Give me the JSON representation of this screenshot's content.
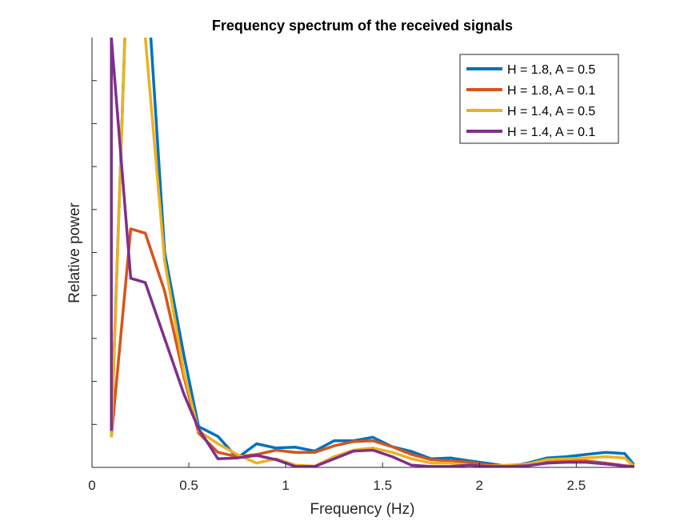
{
  "chart_data": {
    "type": "line",
    "title": "Frequency spectrum of the received signals",
    "xlabel": "Frequency (Hz)",
    "ylabel": "Relative power",
    "xlim": [
      0,
      2.8
    ],
    "ylim": [
      0,
      10
    ],
    "x_ticks": [
      0,
      0.5,
      1,
      1.5,
      2,
      2.5
    ],
    "x_tick_labels": [
      "0",
      "0.5",
      "1",
      "1.5",
      "2",
      "2.5"
    ],
    "y_ticks": [
      1,
      2,
      3,
      4,
      5,
      6,
      7,
      8,
      9
    ],
    "y_tick_labels": [],
    "grid": false,
    "legend_position": "top-right",
    "x": [
      0.1,
      0.2,
      0.275,
      0.375,
      0.475,
      0.55,
      0.65,
      0.75,
      0.85,
      0.95,
      1.05,
      1.15,
      1.25,
      1.35,
      1.45,
      1.55,
      1.65,
      1.75,
      1.85,
      1.95,
      2.05,
      2.15,
      2.25,
      2.35,
      2.45,
      2.55,
      2.65,
      2.75,
      2.8
    ],
    "series": [
      {
        "name": "H = 1.8, A = 0.5",
        "color": "#0072BD",
        "values": [
          0.8,
          14.0,
          12.0,
          5.0,
          2.6,
          0.95,
          0.72,
          0.22,
          0.55,
          0.45,
          0.47,
          0.38,
          0.62,
          0.62,
          0.7,
          0.48,
          0.37,
          0.2,
          0.22,
          0.15,
          0.09,
          0.02,
          0.1,
          0.22,
          0.25,
          0.3,
          0.35,
          0.32,
          0.05
        ]
      },
      {
        "name": "H = 1.8, A = 0.1",
        "color": "#D95319",
        "values": [
          0.7,
          5.55,
          5.45,
          4.1,
          2.1,
          0.8,
          0.35,
          0.25,
          0.3,
          0.4,
          0.35,
          0.35,
          0.5,
          0.6,
          0.62,
          0.48,
          0.3,
          0.18,
          0.15,
          0.12,
          0.05,
          0.02,
          0.05,
          0.12,
          0.15,
          0.15,
          0.1,
          0.04,
          0.02
        ]
      },
      {
        "name": "H = 1.4, A = 0.5",
        "color": "#EDB120",
        "values": [
          0.7,
          14.0,
          10.0,
          4.8,
          2.2,
          0.85,
          0.55,
          0.3,
          0.1,
          0.2,
          0.05,
          0.03,
          0.25,
          0.4,
          0.45,
          0.35,
          0.2,
          0.1,
          0.1,
          0.05,
          0.03,
          0.05,
          0.08,
          0.18,
          0.2,
          0.22,
          0.25,
          0.22,
          0.02
        ]
      },
      {
        "name": "H = 1.4, A = 0.1",
        "color": "#7E2F8E",
        "values": [
          10.0,
          4.4,
          4.3,
          3.0,
          1.7,
          0.9,
          0.2,
          0.22,
          0.28,
          0.18,
          0.02,
          0.02,
          0.2,
          0.38,
          0.4,
          0.25,
          0.05,
          0.02,
          0.02,
          0.05,
          0.02,
          0.02,
          0.04,
          0.1,
          0.12,
          0.12,
          0.08,
          0.03,
          0.02
        ]
      }
    ],
    "spike": {
      "x": [
        0.1,
        0.1
      ],
      "y": [
        10.0,
        0.85
      ]
    }
  }
}
